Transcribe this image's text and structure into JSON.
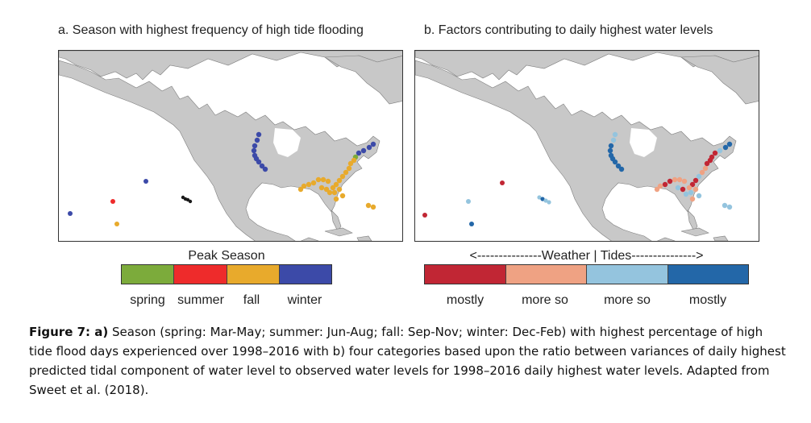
{
  "panel_a": {
    "title": "a. Season with highest frequency of high tide flooding",
    "legend_title": "Peak Season",
    "legend": [
      {
        "label": "spring",
        "color": "#7cab3b"
      },
      {
        "label": "summer",
        "color": "#ee2b2b"
      },
      {
        "label": "fall",
        "color": "#e8aa2c"
      },
      {
        "label": "winter",
        "color": "#3c4aa8"
      }
    ]
  },
  "panel_b": {
    "title": "b. Factors contributing to daily highest water levels",
    "legend_title": "<---------------Weather | Tides--------------->",
    "legend": [
      {
        "label": "mostly",
        "color": "#c12634"
      },
      {
        "label": "more so",
        "color": "#efa283"
      },
      {
        "label": "more so",
        "color": "#94c4de"
      },
      {
        "label": "mostly",
        "color": "#2367a8"
      }
    ]
  },
  "caption": {
    "figure_label": "Figure 7: a)",
    "text": " Season (spring: Mar-May; summer: Jun-Aug; fall: Sep-Nov; winter: Dec-Feb) with highest percentage of high tide flood days experienced over 1998–2016 with b) four categories based upon the ratio between variances of daily highest predicted tidal component of water level to observed water levels for 1998–2016 daily highest water levels.  Adapted from Sweet et al. (2018)."
  },
  "colors": {
    "land": "#c8c8c8",
    "ocean": "#ffffff",
    "coast_line": "#7d7d7d",
    "hawaii_dots": "#1a1a1a"
  },
  "icons": [
    "map-base-north-america"
  ]
}
